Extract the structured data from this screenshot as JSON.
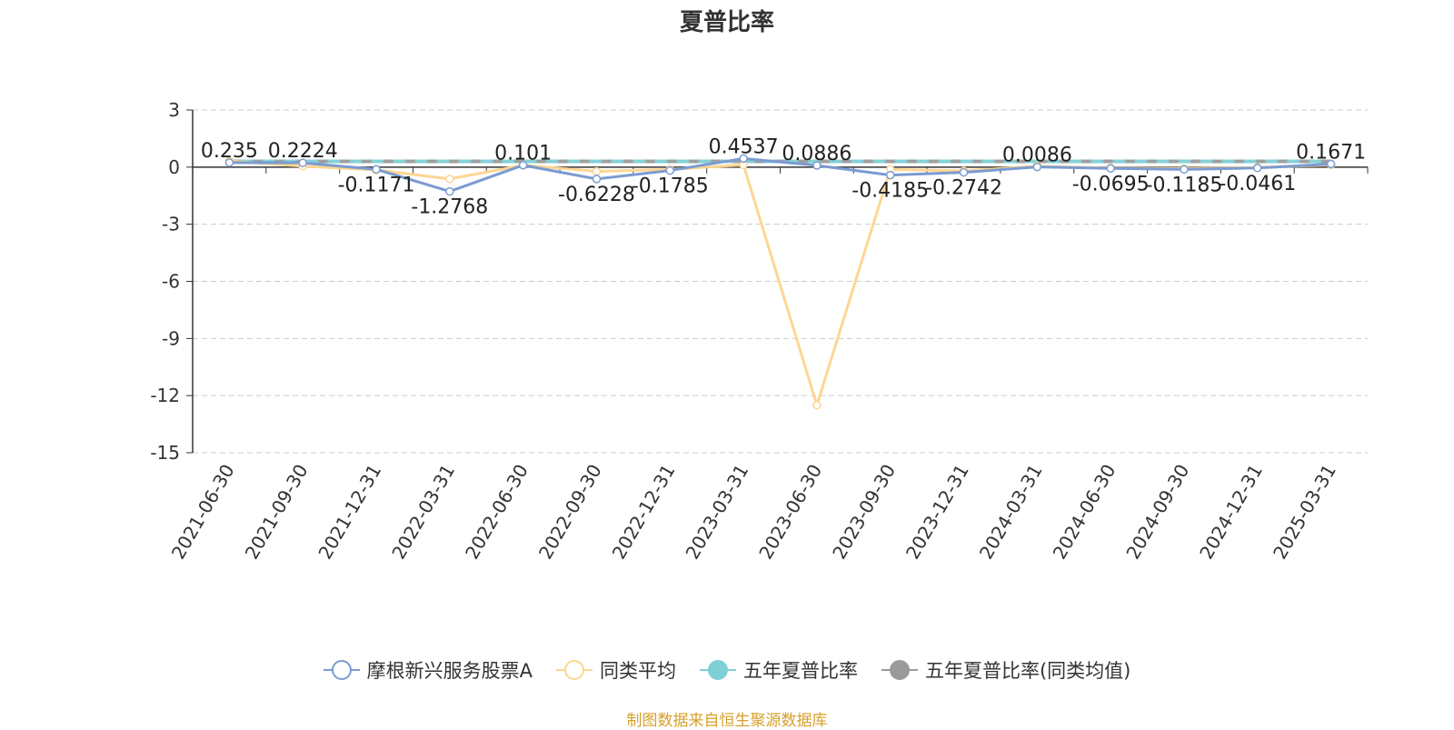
{
  "chart_data": {
    "type": "line",
    "title": "夏普比率",
    "categories": [
      "2021-06-30",
      "2021-09-30",
      "2021-12-31",
      "2022-03-31",
      "2022-06-30",
      "2022-09-30",
      "2022-12-31",
      "2023-03-31",
      "2023-06-30",
      "2023-09-30",
      "2023-12-31",
      "2024-03-31",
      "2024-06-30",
      "2024-09-30",
      "2024-12-31",
      "2025-03-31"
    ],
    "ylim": [
      -15,
      3
    ],
    "yticks": [
      3,
      0,
      -3,
      -6,
      -9,
      -12,
      -15
    ],
    "grid": true,
    "legend_position": "bottom",
    "series": [
      {
        "name": "摩根新兴服务股票A",
        "color": "#7b9bd1",
        "values": [
          0.235,
          0.2224,
          -0.1171,
          -1.2768,
          0.101,
          -0.6228,
          -0.1785,
          0.4537,
          0.0886,
          -0.4185,
          -0.2742,
          0.0086,
          -0.0695,
          -0.1185,
          -0.0461,
          0.1671
        ]
      },
      {
        "name": "同类平均",
        "color": "#fdd692",
        "values": [
          0.32,
          0.05,
          -0.15,
          -0.62,
          0.1,
          -0.22,
          -0.12,
          0.12,
          -12.5,
          -0.12,
          -0.2,
          0.05,
          -0.05,
          -0.07,
          -0.02,
          0.12
        ]
      },
      {
        "name": "五年夏普比率",
        "color": "#7fcfd6",
        "values": [
          0.3,
          0.3,
          0.3,
          0.3,
          0.3,
          0.3,
          0.3,
          0.3,
          0.3,
          0.3,
          0.3,
          0.3,
          0.3,
          0.3,
          0.3,
          0.3
        ]
      },
      {
        "name": "五年夏普比率(同类均值)",
        "color": "#9a9a9a",
        "values": [
          0.3,
          0.3,
          0.3,
          0.3,
          0.3,
          0.3,
          0.3,
          0.3,
          0.3,
          0.3,
          0.3,
          0.3,
          0.3,
          0.3,
          0.3,
          0.3
        ]
      }
    ],
    "data_labels": [
      "0.235",
      "0.2224",
      "-0.1171",
      "-1.2768",
      "0.101",
      "-0.6228",
      "-0.1785",
      "0.4537",
      "0.0886",
      "-0.4185",
      "-0.2742",
      "0.0086",
      "-0.0695",
      "-0.1185",
      "-0.0461",
      "0.1671"
    ]
  },
  "source_text": "制图数据来自恒生聚源数据库"
}
